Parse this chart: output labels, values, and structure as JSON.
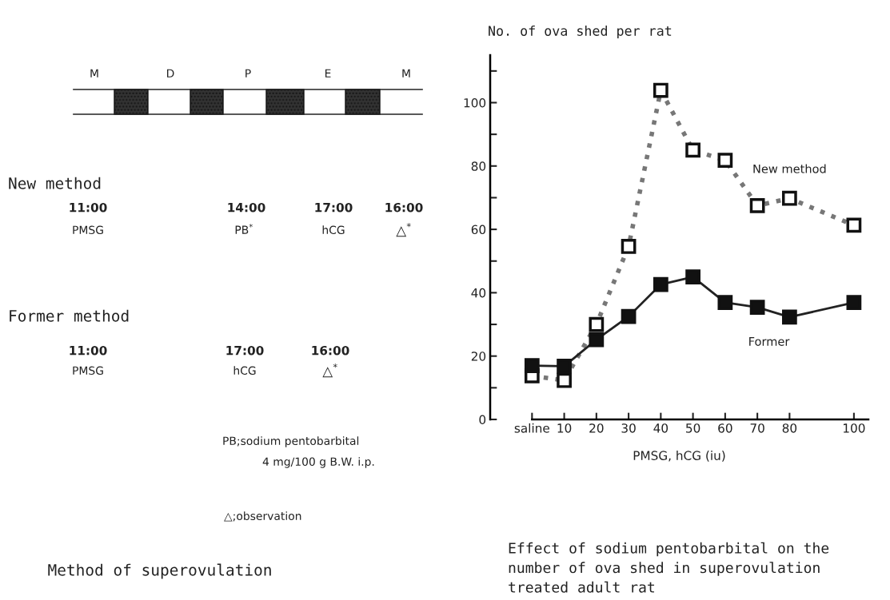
{
  "chart_data": [
    {
      "type": "other",
      "title": "Method of superovulation",
      "annotations": [
        "M",
        "D",
        "P",
        "E",
        "M",
        "New method",
        "11:00",
        "14:00",
        "17:00",
        "16:00",
        "PMSG",
        "PB$^{*}$",
        "hCG",
        "△$^{*}$",
        "Former method",
        "11:00",
        "17:00",
        "16:00",
        "PMSG",
        "hCG",
        "△$^{*}$",
        "PB;sodium pentobarbital",
        "4 mg/100 g B.W. i.p.",
        "△;observation"
      ]
    },
    {
      "type": "line",
      "title": "Effect of sodium pentobarbital on the\nnumber of ova shed in superovulation\ntreated adult rat",
      "ylabel": "No. of ova shed per rat",
      "xlabel": "PMSG, hCG (iu)",
      "x": [
        0,
        10,
        20,
        30,
        40,
        50,
        60,
        70,
        80,
        100
      ],
      "xlim": [
        -13,
        104.5
      ],
      "xticks": [
        {
          "value": 0,
          "label": "saline"
        },
        10,
        20,
        30,
        40,
        50,
        60,
        70,
        80,
        100
      ],
      "ylim": [
        0,
        115
      ],
      "yticks": [
        0,
        {
          "value": 10,
          "label": null
        },
        20,
        {
          "value": 30,
          "label": null
        },
        40,
        {
          "value": 50,
          "label": null
        },
        60,
        {
          "value": 70,
          "label": null
        },
        80,
        {
          "value": 90,
          "label": null
        },
        100,
        {
          "value": 110,
          "label": null
        }
      ],
      "marker": "square",
      "grid": false,
      "legend": false,
      "series": [
        {
          "name": "New method",
          "color": "#777777",
          "line_style": "dotted",
          "values": [
            13.8,
            12.3,
            30,
            54.6,
            103.9,
            85,
            81.8,
            67.5,
            69.8,
            61.3
          ]
        },
        {
          "name": "Former",
          "color": "#222222",
          "line_style": "solid",
          "values": [
            17,
            16.8,
            25.2,
            32.5,
            42.6,
            45,
            36.9,
            35.4,
            32.3,
            36.9
          ]
        }
      ]
    }
  ]
}
